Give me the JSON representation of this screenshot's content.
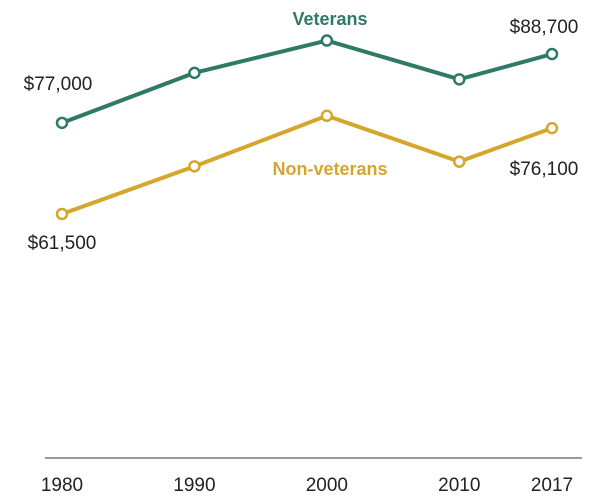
{
  "chart_data": {
    "type": "line",
    "x": [
      1980,
      1990,
      2000,
      2010,
      2017
    ],
    "xlim": [
      1980,
      2017
    ],
    "xticks": [
      1980,
      1990,
      2000,
      2010,
      2017
    ],
    "ylim": [
      20000,
      95000
    ],
    "series": [
      {
        "name": "Veterans",
        "color": "#2e7a66",
        "values": [
          77000,
          85500,
          91000,
          84400,
          88700
        ],
        "value_labels": [
          "$77,000",
          null,
          null,
          null,
          "$88,700"
        ]
      },
      {
        "name": "Non-veterans",
        "color": "#d4a72c",
        "values": [
          61500,
          69600,
          78200,
          70400,
          76100
        ],
        "value_labels": [
          "$61,500",
          null,
          null,
          null,
          "$76,100"
        ]
      }
    ]
  }
}
